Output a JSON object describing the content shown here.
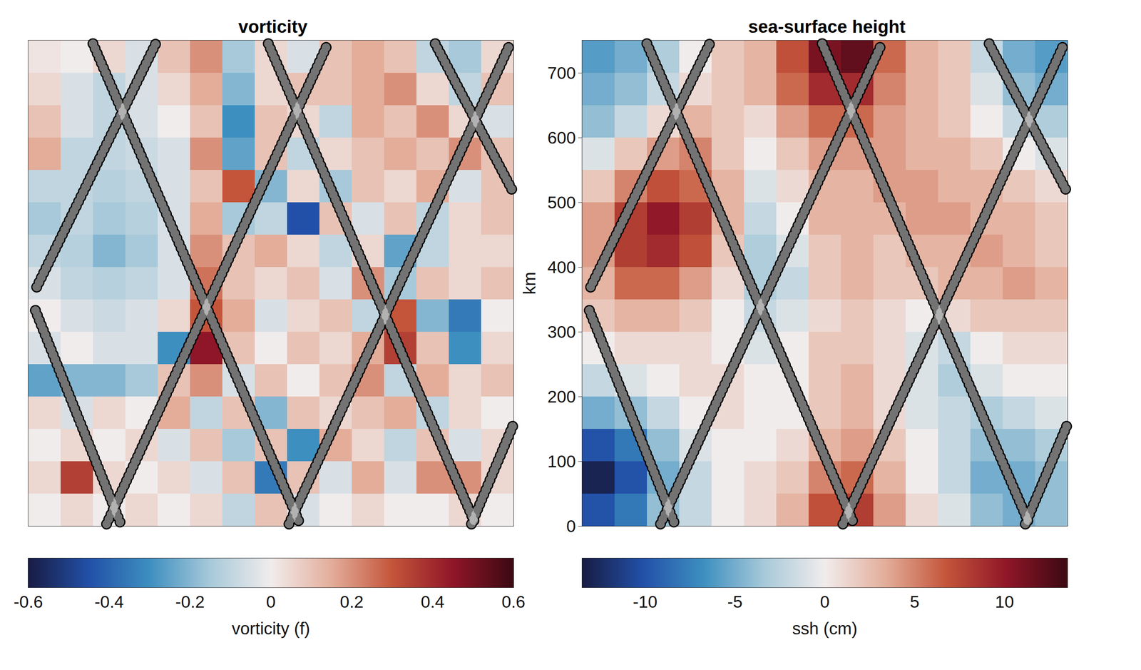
{
  "chart_data": [
    {
      "type": "heatmap",
      "title": "vorticity",
      "tick_labels": false,
      "xlim": [
        0,
        750
      ],
      "ylim": [
        0,
        750
      ],
      "x_centers": [
        25,
        75,
        125,
        175,
        225,
        275,
        325,
        375,
        425,
        475,
        525,
        575,
        625,
        675,
        725
      ],
      "y_centers": [
        725,
        675,
        625,
        575,
        525,
        475,
        425,
        375,
        325,
        275,
        225,
        175,
        125,
        75,
        25
      ],
      "cells": [
        [
          0.02,
          0.0,
          0.05,
          -0.05,
          0.1,
          0.2,
          -0.15,
          0.05,
          -0.05,
          0.1,
          0.15,
          0.1,
          -0.1,
          -0.15,
          0.05
        ],
        [
          0.05,
          -0.05,
          -0.1,
          -0.05,
          0.05,
          0.15,
          -0.2,
          0.05,
          0.1,
          0.1,
          0.15,
          0.2,
          0.05,
          -0.1,
          0.1
        ],
        [
          0.1,
          -0.05,
          -0.1,
          -0.05,
          0.0,
          0.1,
          -0.3,
          0.1,
          0.05,
          -0.1,
          0.15,
          0.1,
          0.2,
          0.05,
          -0.05
        ],
        [
          0.15,
          -0.1,
          -0.1,
          -0.08,
          -0.05,
          0.2,
          -0.25,
          0.1,
          -0.1,
          0.05,
          0.1,
          0.15,
          0.1,
          0.2,
          0.1
        ],
        [
          -0.1,
          -0.1,
          -0.12,
          -0.1,
          -0.05,
          0.1,
          0.3,
          -0.2,
          0.05,
          -0.15,
          0.1,
          0.05,
          0.15,
          -0.05,
          0.1
        ],
        [
          -0.15,
          -0.1,
          -0.15,
          -0.12,
          -0.05,
          0.15,
          -0.15,
          -0.1,
          -0.45,
          0.1,
          -0.05,
          0.1,
          -0.1,
          0.05,
          0.1
        ],
        [
          -0.1,
          -0.12,
          -0.2,
          -0.15,
          -0.05,
          0.2,
          0.1,
          0.15,
          0.05,
          -0.1,
          0.05,
          -0.25,
          -0.1,
          0.05,
          0.05
        ],
        [
          -0.05,
          -0.1,
          -0.12,
          -0.1,
          -0.05,
          0.25,
          0.1,
          0.05,
          0.1,
          -0.05,
          0.2,
          -0.15,
          0.1,
          0.05,
          0.1
        ],
        [
          0.0,
          -0.05,
          -0.08,
          -0.05,
          0.05,
          0.3,
          0.15,
          -0.05,
          0.05,
          0.1,
          -0.1,
          0.3,
          -0.2,
          -0.35,
          0.0
        ],
        [
          -0.05,
          0.0,
          -0.05,
          -0.05,
          -0.3,
          0.45,
          0.1,
          0.0,
          0.1,
          0.05,
          0.15,
          0.35,
          0.1,
          -0.3,
          0.05
        ],
        [
          -0.25,
          -0.2,
          -0.2,
          -0.15,
          0.1,
          0.2,
          -0.05,
          0.1,
          0.0,
          0.1,
          0.2,
          -0.1,
          0.15,
          0.05,
          0.1
        ],
        [
          0.05,
          -0.05,
          0.05,
          0.0,
          0.15,
          -0.1,
          0.1,
          -0.2,
          0.1,
          0.05,
          0.1,
          0.15,
          -0.1,
          0.05,
          0.0
        ],
        [
          0.0,
          0.05,
          0.0,
          0.05,
          -0.05,
          0.1,
          -0.15,
          0.1,
          -0.3,
          0.15,
          0.05,
          -0.1,
          0.1,
          -0.05,
          0.05
        ],
        [
          0.05,
          0.35,
          0.05,
          0.0,
          0.05,
          -0.05,
          0.1,
          -0.35,
          0.1,
          -0.05,
          0.15,
          -0.05,
          0.2,
          0.2,
          0.05
        ],
        [
          0.0,
          0.05,
          0.0,
          0.05,
          0.0,
          0.05,
          -0.1,
          0.1,
          -0.05,
          0.0,
          0.05,
          0.0,
          0.0,
          0.05,
          0.0
        ]
      ],
      "colorbar": {
        "label": "vorticity (f)",
        "range": [
          -0.6,
          0.6
        ],
        "ticks": [
          -0.6,
          -0.4,
          -0.2,
          0,
          0.2,
          0.4,
          0.6
        ]
      },
      "tracks": [
        {
          "x": [
            100,
            420
          ],
          "y": [
            745,
            3
          ]
        },
        {
          "x": [
            13,
            197
          ],
          "y": [
            369,
            745
          ]
        },
        {
          "x": [
            121,
            463
          ],
          "y": [
            3,
            745
          ]
        },
        {
          "x": [
            11,
            143
          ],
          "y": [
            333,
            3
          ]
        },
        {
          "x": [
            371,
            691
          ],
          "y": [
            745,
            3
          ]
        },
        {
          "x": [
            403,
            745
          ],
          "y": [
            3,
            745
          ]
        },
        {
          "x": [
            629,
            750
          ],
          "y": [
            745,
            515
          ]
        },
        {
          "x": [
            685,
            750
          ],
          "y": [
            3,
            157
          ]
        }
      ]
    },
    {
      "type": "heatmap",
      "title": "sea-surface height",
      "tick_labels": "y",
      "ylabel": "km",
      "xlim": [
        0,
        750
      ],
      "ylim": [
        0,
        750
      ],
      "yticks": [
        0,
        100,
        200,
        300,
        400,
        500,
        600,
        700
      ],
      "x_centers": [
        25,
        75,
        125,
        175,
        225,
        275,
        325,
        375,
        425,
        475,
        525,
        575,
        625,
        675,
        725
      ],
      "y_centers": [
        725,
        675,
        625,
        575,
        525,
        475,
        425,
        375,
        325,
        275,
        225,
        175,
        125,
        75,
        25
      ],
      "cells": [
        [
          -6,
          -5,
          -3,
          0,
          2,
          3,
          7,
          11,
          12,
          6,
          3,
          2,
          -2,
          -5,
          -6
        ],
        [
          -5,
          -4,
          -2,
          1,
          2,
          3,
          6,
          9,
          9,
          5,
          3,
          2,
          -1,
          -4,
          -5
        ],
        [
          -4,
          -2,
          1,
          3,
          2,
          1,
          4,
          6,
          6,
          4,
          3,
          2,
          0,
          -2,
          -3
        ],
        [
          -1,
          2,
          4,
          5,
          2,
          0,
          2,
          4,
          4,
          4,
          3,
          3,
          2,
          0,
          -1
        ],
        [
          2,
          5,
          7,
          6,
          3,
          -1,
          1,
          3,
          3,
          4,
          4,
          3,
          3,
          2,
          1
        ],
        [
          4,
          8,
          10,
          8,
          3,
          -2,
          0,
          3,
          3,
          3,
          4,
          4,
          3,
          3,
          2
        ],
        [
          4,
          8,
          9,
          7,
          2,
          -3,
          -1,
          2,
          3,
          2,
          3,
          3,
          4,
          3,
          2
        ],
        [
          3,
          6,
          6,
          4,
          1,
          -3,
          -2,
          2,
          3,
          2,
          2,
          3,
          3,
          4,
          3
        ],
        [
          2,
          3,
          3,
          2,
          0,
          -2,
          -1,
          1,
          2,
          1,
          0,
          1,
          2,
          2,
          2
        ],
        [
          0,
          1,
          1,
          1,
          0,
          -1,
          0,
          2,
          2,
          1,
          -1,
          -2,
          0,
          1,
          1
        ],
        [
          -2,
          -1,
          0,
          1,
          1,
          0,
          0,
          2,
          3,
          1,
          -1,
          -3,
          -1,
          0,
          0
        ],
        [
          -5,
          -4,
          -2,
          0,
          1,
          0,
          0,
          2,
          3,
          1,
          -1,
          -2,
          -3,
          -2,
          -1
        ],
        [
          -10,
          -8,
          -4,
          -1,
          0,
          0,
          1,
          3,
          4,
          2,
          0,
          -2,
          -4,
          -4,
          -3
        ],
        [
          -13,
          -10,
          -5,
          -2,
          0,
          1,
          2,
          5,
          6,
          3,
          0,
          -2,
          -5,
          -5,
          -4
        ],
        [
          -10,
          -8,
          -4,
          -2,
          0,
          1,
          3,
          7,
          8,
          4,
          1,
          -1,
          -4,
          -5,
          -4
        ]
      ],
      "colorbar": {
        "label": "ssh (cm)",
        "range": [
          -13.5,
          13.5
        ],
        "ticks": [
          -10,
          -5,
          0,
          5,
          10
        ]
      },
      "tracks": [
        {
          "x": [
            100,
            420
          ],
          "y": [
            745,
            3
          ]
        },
        {
          "x": [
            13,
            197
          ],
          "y": [
            369,
            745
          ]
        },
        {
          "x": [
            121,
            463
          ],
          "y": [
            3,
            745
          ]
        },
        {
          "x": [
            11,
            143
          ],
          "y": [
            333,
            3
          ]
        },
        {
          "x": [
            371,
            691
          ],
          "y": [
            745,
            3
          ]
        },
        {
          "x": [
            403,
            745
          ],
          "y": [
            3,
            745
          ]
        },
        {
          "x": [
            629,
            750
          ],
          "y": [
            745,
            515
          ]
        },
        {
          "x": [
            685,
            750
          ],
          "y": [
            3,
            157
          ]
        }
      ]
    }
  ]
}
